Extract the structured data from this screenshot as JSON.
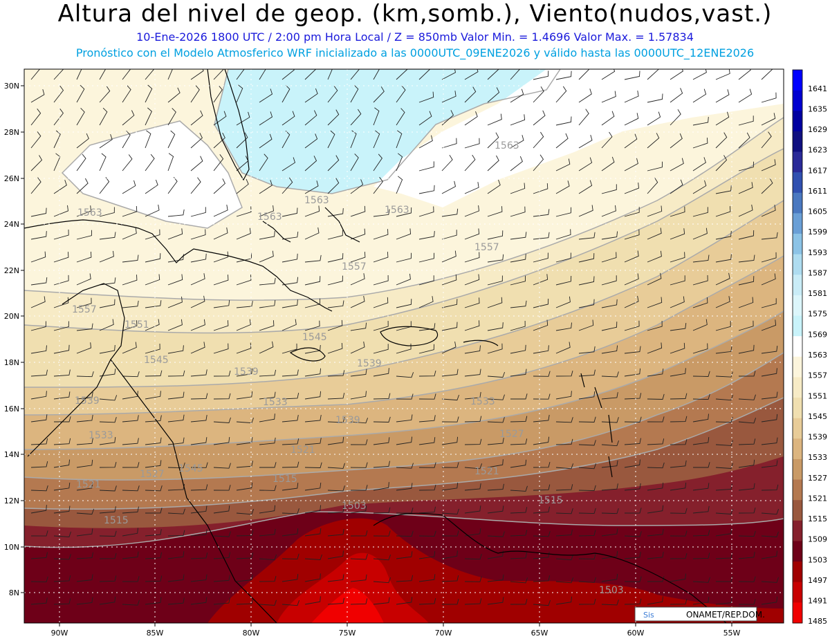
{
  "header": {
    "title": "Altura del nivel de geop. (km,somb.), Viento(nudos,vast.)",
    "subtitle": "10-Ene-2026  1800 UTC / 2:00 pm Hora Local / Z = 850mb     Valor Min. = 1.4696  Valor Max. = 1.57834",
    "model_line": "Pronóstico con el Modelo Atmosferico WRF inicializado a las 0000UTC_09ENE2026 y válido hasta las  0000UTC_12ENE2026"
  },
  "map": {
    "lat_labels": [
      "30N",
      "28N",
      "26N",
      "24N",
      "22N",
      "20N",
      "18N",
      "16N",
      "14N",
      "12N",
      "10N",
      "8N"
    ],
    "lon_labels": [
      "90W",
      "85W",
      "80W",
      "75W",
      "70W",
      "65W",
      "60W",
      "55W"
    ],
    "contour_labels": [
      "1563",
      "1563",
      "1563",
      "1563",
      "1563",
      "1557",
      "1557",
      "1551",
      "1545",
      "1545",
      "1539",
      "1539",
      "1533",
      "1533",
      "1527",
      "1521",
      "1521",
      "1521",
      "1515",
      "1515",
      "1515",
      "1503",
      "1503",
      "1539",
      "1557",
      "1545",
      "1533",
      "1539",
      "1527"
    ],
    "credit": "ONAMET/REP.DOM.",
    "credit_logo": "Sis"
  },
  "colorbar": {
    "levels": [
      "1641",
      "1635",
      "1629",
      "1623",
      "1617",
      "1611",
      "1605",
      "1599",
      "1593",
      "1587",
      "1581",
      "1575",
      "1569",
      "1563",
      "1557",
      "1551",
      "1545",
      "1539",
      "1533",
      "1527",
      "1521",
      "1515",
      "1509",
      "1503",
      "1497",
      "1491",
      "1485"
    ],
    "colors": [
      "#0000ff",
      "#0000d0",
      "#0000a0",
      "#101080",
      "#2a2a98",
      "#3050b0",
      "#4a78c0",
      "#6a9fd6",
      "#8cc3e6",
      "#aedcf0",
      "#c9ecf7",
      "#dcf6fb",
      "#c9f3fa",
      "#ffffff",
      "#fcf5dc",
      "#f7ebc6",
      "#f0dfb0",
      "#e8cc98",
      "#dcb57f",
      "#c99a66",
      "#b47950",
      "#99583e",
      "#85202c",
      "#6e0018",
      "#a00000",
      "#c80000",
      "#f00000"
    ]
  }
}
